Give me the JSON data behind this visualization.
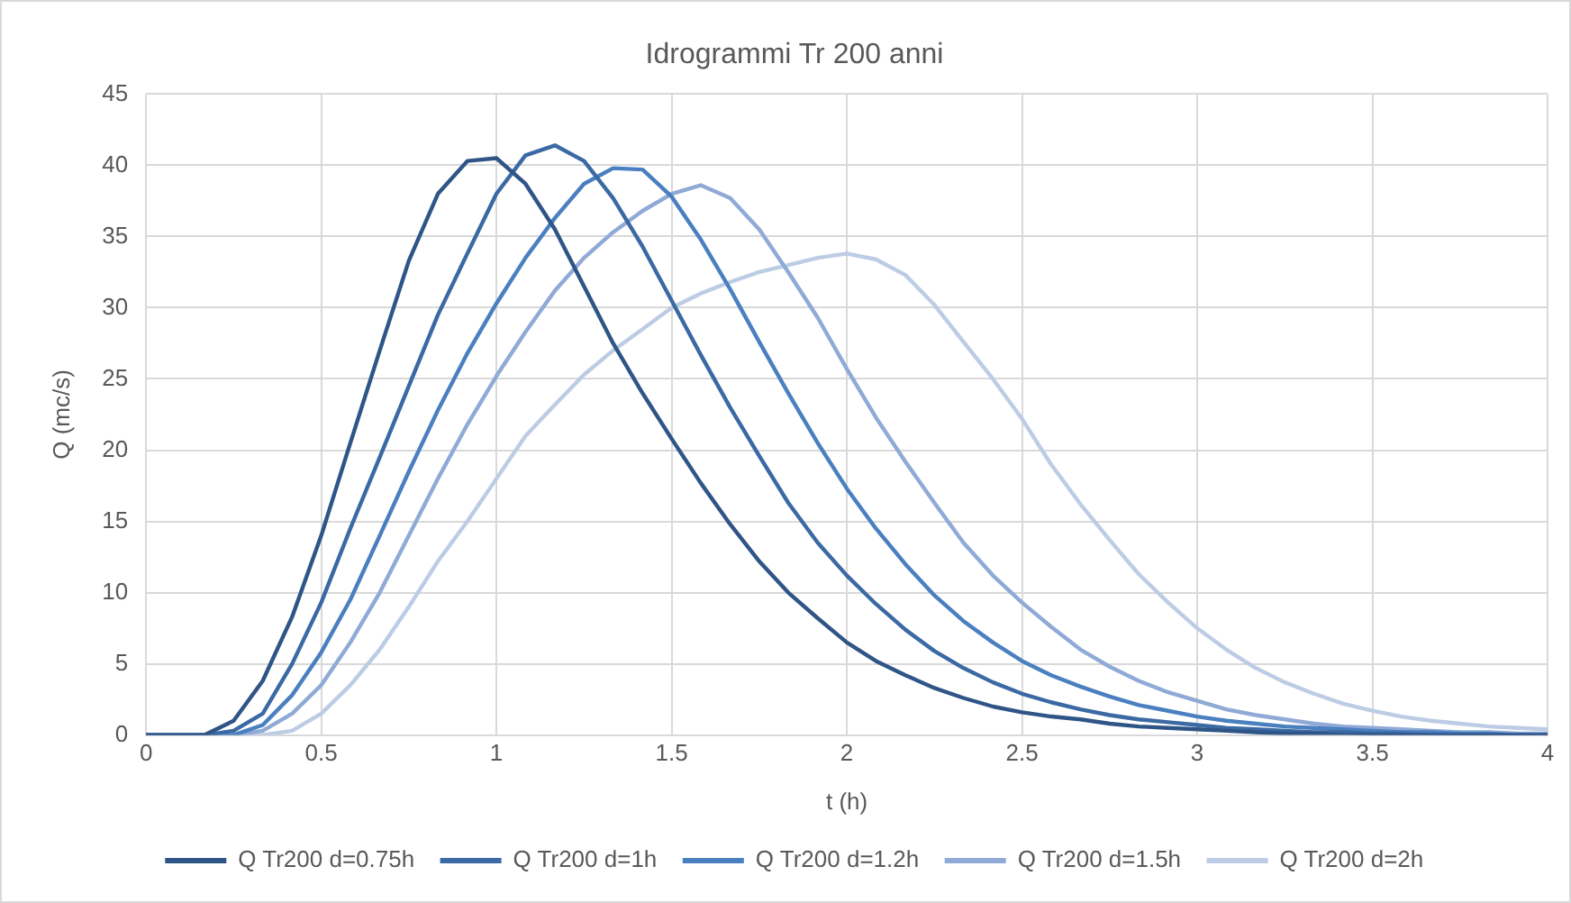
{
  "chart_data": {
    "type": "line",
    "title": "Idrogrammi Tr 200 anni",
    "xlabel": "t (h)",
    "ylabel": "Q (mc/s)",
    "x": [
      0,
      0.083,
      0.167,
      0.25,
      0.333,
      0.417,
      0.5,
      0.583,
      0.667,
      0.75,
      0.833,
      0.917,
      1,
      1.083,
      1.167,
      1.25,
      1.333,
      1.417,
      1.5,
      1.583,
      1.667,
      1.75,
      1.833,
      1.917,
      2,
      2.083,
      2.167,
      2.25,
      2.333,
      2.417,
      2.5,
      2.583,
      2.667,
      2.75,
      2.833,
      2.917,
      3,
      3.083,
      3.167,
      3.25,
      3.333,
      3.417,
      3.5,
      3.583,
      3.667,
      3.75,
      3.833,
      3.917,
      4
    ],
    "series": [
      {
        "name": "Q Tr200 d=0.75h",
        "color": "#2f5587",
        "values": [
          0,
          0,
          0,
          1,
          3.8,
          8.3,
          14,
          20.5,
          27,
          33.3,
          38,
          40.3,
          40.5,
          38.7,
          35.5,
          31.5,
          27.5,
          24,
          20.8,
          17.7,
          14.8,
          12.2,
          10,
          8.2,
          6.5,
          5.2,
          4.2,
          3.3,
          2.6,
          2,
          1.6,
          1.3,
          1.1,
          0.8,
          0.6,
          0.5,
          0.4,
          0.3,
          0.2,
          0.1,
          0.1,
          0,
          0,
          0,
          0,
          0,
          0,
          0,
          0
        ]
      },
      {
        "name": "Q Tr200 d=1h",
        "color": "#3b69a3",
        "values": [
          0,
          0,
          0,
          0.3,
          1.5,
          5,
          9.3,
          14.5,
          19.5,
          24.5,
          29.5,
          33.8,
          38,
          40.7,
          41.4,
          40.3,
          37.7,
          34.3,
          30.5,
          26.7,
          23,
          19.6,
          16.3,
          13.5,
          11.2,
          9.2,
          7.4,
          5.9,
          4.7,
          3.7,
          2.9,
          2.3,
          1.8,
          1.4,
          1.1,
          0.9,
          0.7,
          0.5,
          0.4,
          0.3,
          0.2,
          0.2,
          0.1,
          0.1,
          0,
          0,
          0,
          0,
          0
        ]
      },
      {
        "name": "Q Tr200 d=1.2h",
        "color": "#4a7fc0",
        "values": [
          0,
          0,
          0,
          0,
          0.7,
          2.8,
          5.8,
          9.5,
          14,
          18.5,
          22.8,
          26.8,
          30.3,
          33.5,
          36.3,
          38.7,
          39.8,
          39.7,
          37.8,
          34.8,
          31.3,
          27.6,
          24,
          20.5,
          17.3,
          14.5,
          12,
          9.8,
          8,
          6.5,
          5.2,
          4.2,
          3.4,
          2.7,
          2.1,
          1.7,
          1.3,
          1,
          0.8,
          0.6,
          0.5,
          0.4,
          0.3,
          0.2,
          0.2,
          0.1,
          0.1,
          0,
          0
        ]
      },
      {
        "name": "Q Tr200 d=1.5h",
        "color": "#8faad6",
        "values": [
          0,
          0,
          0,
          0,
          0.3,
          1.5,
          3.5,
          6.5,
          10,
          14,
          18,
          21.8,
          25.2,
          28.3,
          31.2,
          33.5,
          35.3,
          36.8,
          38,
          38.6,
          37.7,
          35.5,
          32.5,
          29.3,
          25.7,
          22.3,
          19.2,
          16.3,
          13.5,
          11.2,
          9.3,
          7.6,
          6,
          4.8,
          3.8,
          3,
          2.4,
          1.8,
          1.4,
          1.1,
          0.8,
          0.6,
          0.5,
          0.4,
          0.3,
          0.2,
          0.2,
          0.1,
          0.1
        ]
      },
      {
        "name": "Q Tr200 d=2h",
        "color": "#bdcce5",
        "values": [
          0,
          0,
          0,
          0,
          0,
          0.3,
          1.5,
          3.5,
          6,
          9,
          12.2,
          15,
          18,
          21,
          23.2,
          25.3,
          27,
          28.5,
          30,
          31,
          31.8,
          32.5,
          33,
          33.5,
          33.8,
          33.4,
          32.3,
          30.2,
          27.6,
          25,
          22.2,
          19,
          16.2,
          13.7,
          11.3,
          9.3,
          7.5,
          6,
          4.7,
          3.7,
          2.9,
          2.2,
          1.7,
          1.3,
          1,
          0.8,
          0.6,
          0.5,
          0.4
        ]
      }
    ],
    "xlim": [
      0,
      4
    ],
    "xticks": [
      0,
      0.5,
      1,
      1.5,
      2,
      2.5,
      3,
      3.5,
      4
    ],
    "ylim": [
      0,
      45
    ],
    "yticks": [
      0,
      5,
      10,
      15,
      20,
      25,
      30,
      35,
      40,
      45
    ],
    "grid": true,
    "legend": "bottom",
    "marker": "none",
    "line_style": "solid"
  }
}
